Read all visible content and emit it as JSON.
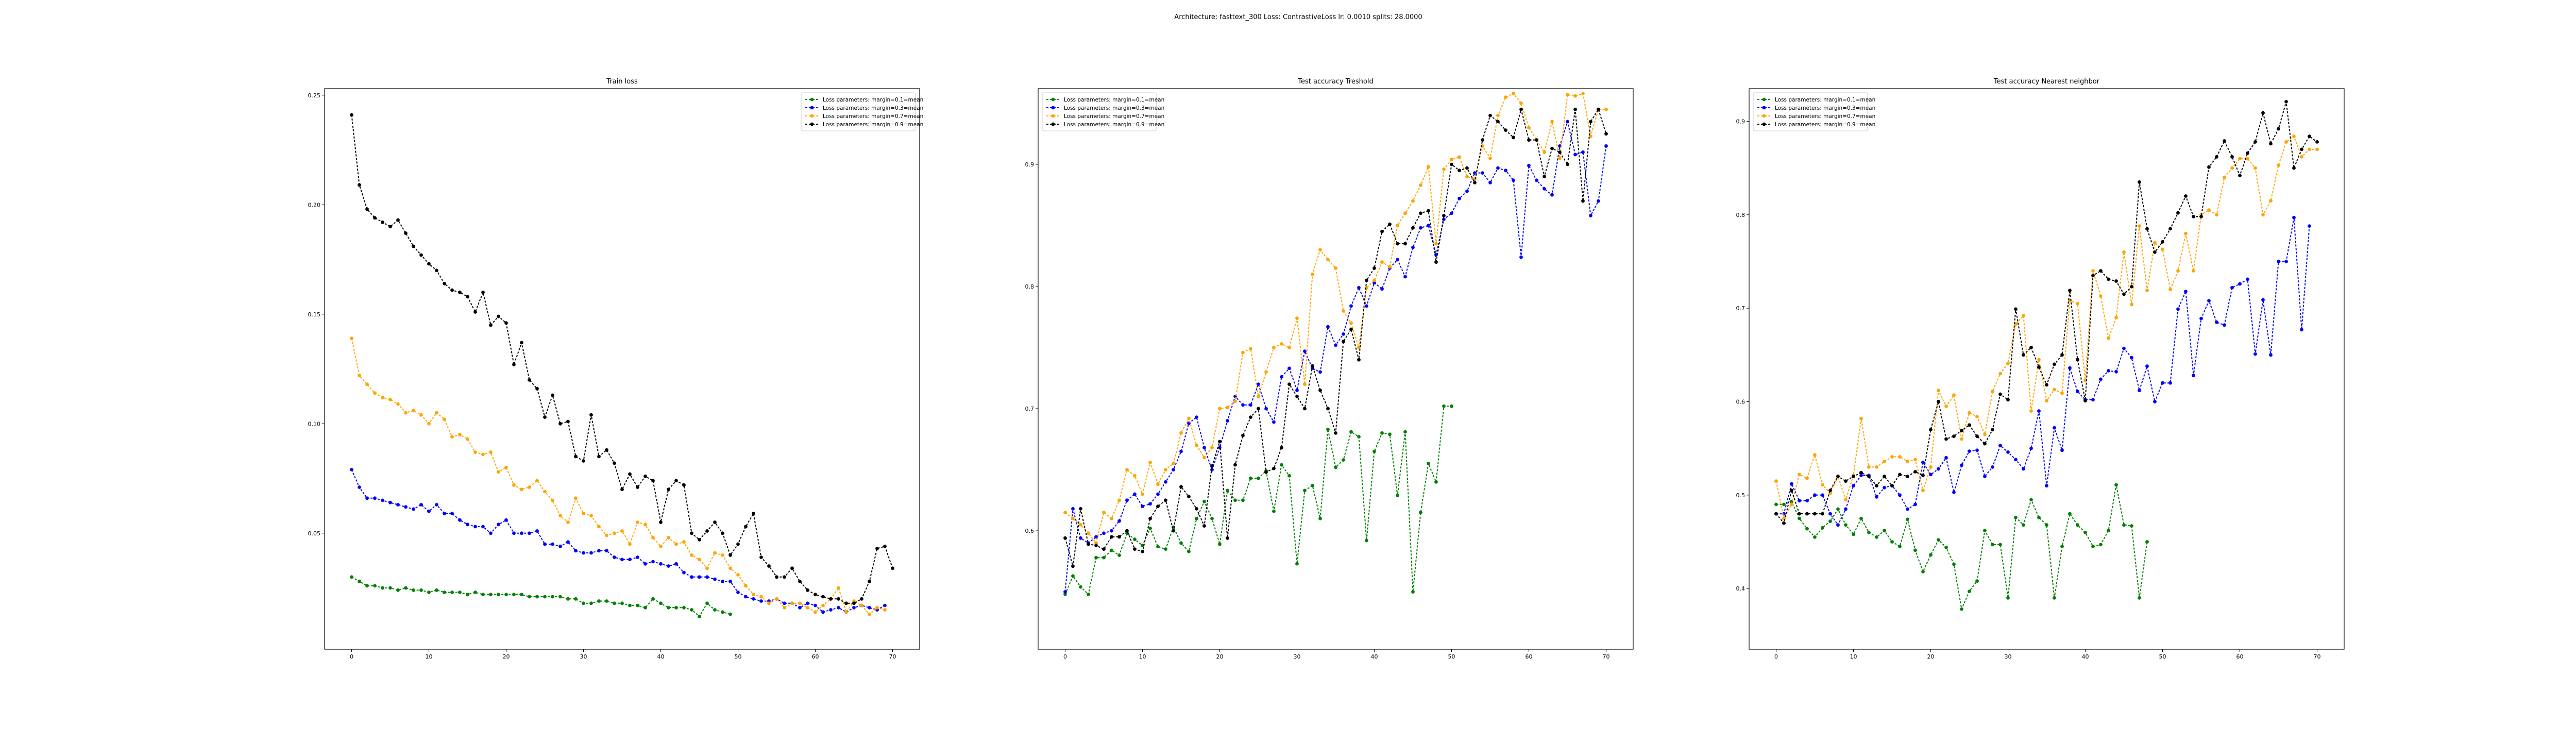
{
  "figure_title": "Architecture: fasttext_300 Loss: ContrastiveLoss lr: 0.0010 splits: 28.0000",
  "legend_labels": [
    "Loss parameters: margin=0.1=mean",
    "Loss parameters: margin=0.3=mean",
    "Loss parameters: margin=0.7=mean",
    "Loss parameters: margin=0.9=mean"
  ],
  "series_colors": [
    "#008000",
    "#0000ff",
    "#ffa500",
    "#000000"
  ],
  "chart_data": [
    {
      "type": "line",
      "title": "Train loss",
      "xlabel": "",
      "ylabel": "",
      "xlim": [
        -3.5,
        73.5
      ],
      "ylim": [
        -0.003,
        0.253
      ],
      "xticks": [
        0,
        10,
        20,
        30,
        40,
        50,
        60,
        70
      ],
      "yticks": [
        0.05,
        0.1,
        0.15,
        0.2,
        0.25
      ],
      "ytick_labels": [
        "0.05",
        "0.10",
        "0.15",
        "0.20",
        "0.25"
      ],
      "legend_position": "upper right",
      "grid": false,
      "series": [
        {
          "name": "Loss parameters: margin=0.1=mean",
          "values": [
            0.03,
            0.028,
            0.026,
            0.026,
            0.025,
            0.025,
            0.024,
            0.025,
            0.024,
            0.024,
            0.023,
            0.024,
            0.023,
            0.023,
            0.023,
            0.022,
            0.023,
            0.022,
            0.022,
            0.022,
            0.022,
            0.022,
            0.022,
            0.021,
            0.021,
            0.021,
            0.021,
            0.021,
            0.02,
            0.02,
            0.018,
            0.018,
            0.019,
            0.019,
            0.018,
            0.018,
            0.017,
            0.017,
            0.016,
            0.02,
            0.018,
            0.016,
            0.016,
            0.016,
            0.015,
            0.012,
            0.018,
            0.015,
            0.014,
            0.013
          ]
        },
        {
          "name": "Loss parameters: margin=0.3=mean",
          "values": [
            0.079,
            0.071,
            0.066,
            0.066,
            0.065,
            0.064,
            0.063,
            0.062,
            0.061,
            0.063,
            0.06,
            0.063,
            0.059,
            0.059,
            0.056,
            0.054,
            0.053,
            0.053,
            0.05,
            0.054,
            0.056,
            0.05,
            0.05,
            0.05,
            0.051,
            0.045,
            0.045,
            0.044,
            0.046,
            0.042,
            0.041,
            0.041,
            0.042,
            0.042,
            0.039,
            0.038,
            0.038,
            0.039,
            0.036,
            0.037,
            0.036,
            0.035,
            0.036,
            0.032,
            0.03,
            0.03,
            0.03,
            0.029,
            0.028,
            0.028,
            0.023,
            0.021,
            0.02,
            0.019,
            0.019,
            0.02,
            0.018,
            0.018,
            0.016,
            0.018,
            0.017,
            0.014,
            0.015,
            0.016,
            0.014,
            0.016,
            0.017,
            0.016,
            0.015,
            0.017
          ]
        },
        {
          "name": "Loss parameters: margin=0.7=mean",
          "values": [
            0.139,
            0.122,
            0.118,
            0.114,
            0.112,
            0.111,
            0.109,
            0.105,
            0.106,
            0.104,
            0.1,
            0.105,
            0.102,
            0.094,
            0.095,
            0.093,
            0.087,
            0.086,
            0.087,
            0.078,
            0.08,
            0.072,
            0.07,
            0.071,
            0.074,
            0.069,
            0.065,
            0.058,
            0.055,
            0.066,
            0.059,
            0.058,
            0.053,
            0.049,
            0.05,
            0.051,
            0.045,
            0.055,
            0.054,
            0.048,
            0.044,
            0.048,
            0.045,
            0.046,
            0.04,
            0.038,
            0.034,
            0.041,
            0.04,
            0.034,
            0.031,
            0.026,
            0.022,
            0.021,
            0.018,
            0.02,
            0.016,
            0.018,
            0.018,
            0.016,
            0.014,
            0.017,
            0.02,
            0.025,
            0.014,
            0.019,
            0.017,
            0.013,
            0.016,
            0.015
          ]
        },
        {
          "name": "Loss parameters: margin=0.9=mean",
          "values": [
            0.241,
            0.209,
            0.198,
            0.194,
            0.192,
            0.19,
            0.193,
            0.187,
            0.181,
            0.177,
            0.173,
            0.17,
            0.164,
            0.161,
            0.16,
            0.158,
            0.151,
            0.16,
            0.145,
            0.149,
            0.146,
            0.127,
            0.137,
            0.12,
            0.116,
            0.103,
            0.113,
            0.1,
            0.101,
            0.085,
            0.083,
            0.104,
            0.085,
            0.088,
            0.082,
            0.07,
            0.077,
            0.071,
            0.076,
            0.074,
            0.055,
            0.07,
            0.074,
            0.072,
            0.05,
            0.047,
            0.051,
            0.055,
            0.05,
            0.04,
            0.045,
            0.053,
            0.059,
            0.039,
            0.035,
            0.03,
            0.03,
            0.034,
            0.028,
            0.024,
            0.022,
            0.021,
            0.02,
            0.02,
            0.018,
            0.018,
            0.02,
            0.028,
            0.043,
            0.044,
            0.034
          ]
        }
      ]
    },
    {
      "type": "line",
      "title": "Test accuracy Treshold",
      "xlabel": "",
      "ylabel": "",
      "xlim": [
        -3.5,
        73.5
      ],
      "ylim": [
        0.503,
        0.962
      ],
      "xticks": [
        0,
        10,
        20,
        30,
        40,
        50,
        60,
        70
      ],
      "yticks": [
        0.6,
        0.7,
        0.8,
        0.9
      ],
      "ytick_labels": [
        "0.6",
        "0.7",
        "0.8",
        "0.9"
      ],
      "legend_position": "upper left",
      "grid": false,
      "series": [
        {
          "name": "Loss parameters: margin=0.1=mean",
          "values": [
            0.548,
            0.563,
            0.554,
            0.548,
            0.578,
            0.578,
            0.584,
            0.58,
            0.598,
            0.593,
            0.588,
            0.602,
            0.587,
            0.585,
            0.603,
            0.59,
            0.583,
            0.61,
            0.624,
            0.61,
            0.589,
            0.633,
            0.625,
            0.625,
            0.643,
            0.643,
            0.649,
            0.616,
            0.654,
            0.645,
            0.573,
            0.633,
            0.637,
            0.61,
            0.683,
            0.652,
            0.658,
            0.681,
            0.677,
            0.592,
            0.665,
            0.68,
            0.679,
            0.629,
            0.681,
            0.55,
            0.615,
            0.655,
            0.64,
            0.702,
            0.702
          ]
        },
        {
          "name": "Loss parameters: margin=0.3=mean",
          "values": [
            0.55,
            0.618,
            0.594,
            0.59,
            0.595,
            0.598,
            0.6,
            0.608,
            0.625,
            0.63,
            0.62,
            0.622,
            0.63,
            0.64,
            0.65,
            0.665,
            0.688,
            0.693,
            0.668,
            0.65,
            0.668,
            0.69,
            0.71,
            0.703,
            0.703,
            0.72,
            0.7,
            0.689,
            0.726,
            0.733,
            0.715,
            0.747,
            0.733,
            0.73,
            0.767,
            0.752,
            0.761,
            0.784,
            0.799,
            0.784,
            0.803,
            0.798,
            0.815,
            0.822,
            0.808,
            0.832,
            0.848,
            0.85,
            0.826,
            0.855,
            0.86,
            0.872,
            0.878,
            0.893,
            0.893,
            0.885,
            0.897,
            0.895,
            0.887,
            0.824,
            0.899,
            0.887,
            0.88,
            0.875,
            0.915,
            0.935,
            0.908,
            0.91,
            0.858,
            0.87,
            0.915
          ]
        },
        {
          "name": "Loss parameters: margin=0.7=mean",
          "values": [
            0.615,
            0.61,
            0.605,
            0.598,
            0.59,
            0.615,
            0.61,
            0.625,
            0.65,
            0.645,
            0.63,
            0.656,
            0.638,
            0.65,
            0.655,
            0.68,
            0.692,
            0.67,
            0.66,
            0.668,
            0.7,
            0.701,
            0.706,
            0.746,
            0.749,
            0.71,
            0.73,
            0.75,
            0.753,
            0.75,
            0.774,
            0.72,
            0.81,
            0.83,
            0.822,
            0.815,
            0.78,
            0.77,
            0.75,
            0.799,
            0.805,
            0.82,
            0.816,
            0.85,
            0.86,
            0.87,
            0.883,
            0.898,
            0.835,
            0.896,
            0.904,
            0.906,
            0.89,
            0.888,
            0.915,
            0.905,
            0.94,
            0.955,
            0.958,
            0.95,
            0.93,
            0.92,
            0.91,
            0.935,
            0.905,
            0.957,
            0.956,
            0.958,
            0.923,
            0.945,
            0.945
          ]
        },
        {
          "name": "Loss parameters: margin=0.9=mean",
          "values": [
            0.594,
            0.571,
            0.618,
            0.589,
            0.588,
            0.585,
            0.595,
            0.595,
            0.6,
            0.585,
            0.583,
            0.61,
            0.62,
            0.625,
            0.6,
            0.636,
            0.628,
            0.618,
            0.604,
            0.653,
            0.673,
            0.594,
            0.654,
            0.678,
            0.693,
            0.7,
            0.648,
            0.651,
            0.668,
            0.72,
            0.71,
            0.7,
            0.735,
            0.715,
            0.7,
            0.68,
            0.755,
            0.765,
            0.74,
            0.805,
            0.815,
            0.845,
            0.851,
            0.835,
            0.835,
            0.848,
            0.86,
            0.862,
            0.82,
            0.858,
            0.9,
            0.895,
            0.897,
            0.885,
            0.92,
            0.94,
            0.935,
            0.928,
            0.922,
            0.945,
            0.92,
            0.92,
            0.89,
            0.913,
            0.91,
            0.9,
            0.945,
            0.87,
            0.935,
            0.945,
            0.925
          ]
        }
      ]
    },
    {
      "type": "line",
      "title": "Test accuracy Nearest neighbor",
      "xlabel": "",
      "ylabel": "",
      "xlim": [
        -3.5,
        73.5
      ],
      "ylim": [
        0.335,
        0.935
      ],
      "xticks": [
        0,
        10,
        20,
        30,
        40,
        50,
        60,
        70
      ],
      "yticks": [
        0.4,
        0.5,
        0.6,
        0.7,
        0.8,
        0.9
      ],
      "ytick_labels": [
        "0.4",
        "0.5",
        "0.6",
        "0.7",
        "0.8",
        "0.9"
      ],
      "legend_position": "upper left",
      "grid": false,
      "series": [
        {
          "name": "Loss parameters: margin=0.1=mean",
          "values": [
            0.49,
            0.49,
            0.493,
            0.475,
            0.464,
            0.455,
            0.465,
            0.472,
            0.485,
            0.468,
            0.458,
            0.475,
            0.46,
            0.455,
            0.462,
            0.45,
            0.445,
            0.474,
            0.441,
            0.418,
            0.436,
            0.452,
            0.444,
            0.426,
            0.378,
            0.397,
            0.408,
            0.462,
            0.447,
            0.447,
            0.39,
            0.476,
            0.468,
            0.495,
            0.476,
            0.468,
            0.39,
            0.445,
            0.48,
            0.468,
            0.46,
            0.445,
            0.447,
            0.462,
            0.511,
            0.468,
            0.467,
            0.39,
            0.45
          ]
        },
        {
          "name": "Loss parameters: margin=0.3=mean",
          "values": [
            0.48,
            0.48,
            0.512,
            0.494,
            0.494,
            0.5,
            0.5,
            0.48,
            0.468,
            0.485,
            0.51,
            0.521,
            0.521,
            0.498,
            0.508,
            0.51,
            0.5,
            0.485,
            0.49,
            0.535,
            0.522,
            0.528,
            0.54,
            0.503,
            0.532,
            0.547,
            0.548,
            0.52,
            0.53,
            0.553,
            0.546,
            0.538,
            0.528,
            0.55,
            0.59,
            0.51,
            0.572,
            0.548,
            0.636,
            0.611,
            0.602,
            0.602,
            0.624,
            0.633,
            0.632,
            0.657,
            0.647,
            0.612,
            0.638,
            0.6,
            0.62,
            0.62,
            0.699,
            0.718,
            0.628,
            0.689,
            0.708,
            0.685,
            0.682,
            0.722,
            0.726,
            0.731,
            0.651,
            0.709,
            0.65,
            0.75,
            0.75,
            0.797,
            0.677,
            0.788
          ]
        },
        {
          "name": "Loss parameters: margin=0.7=mean",
          "values": [
            0.515,
            0.475,
            0.49,
            0.522,
            0.518,
            0.543,
            0.511,
            0.502,
            0.52,
            0.495,
            0.521,
            0.582,
            0.53,
            0.53,
            0.536,
            0.541,
            0.541,
            0.536,
            0.538,
            0.505,
            0.53,
            0.612,
            0.595,
            0.607,
            0.56,
            0.588,
            0.584,
            0.565,
            0.611,
            0.63,
            0.641,
            0.683,
            0.692,
            0.59,
            0.645,
            0.601,
            0.613,
            0.609,
            0.708,
            0.705,
            0.623,
            0.74,
            0.713,
            0.668,
            0.69,
            0.76,
            0.704,
            0.788,
            0.719,
            0.77,
            0.763,
            0.72,
            0.74,
            0.78,
            0.74,
            0.8,
            0.805,
            0.8,
            0.84,
            0.85,
            0.86,
            0.86,
            0.85,
            0.8,
            0.815,
            0.853,
            0.878,
            0.884,
            0.862,
            0.87,
            0.87
          ]
        },
        {
          "name": "Loss parameters: margin=0.9=mean",
          "values": [
            0.48,
            0.47,
            0.505,
            0.48,
            0.48,
            0.48,
            0.48,
            0.505,
            0.52,
            0.515,
            0.52,
            0.524,
            0.52,
            0.51,
            0.52,
            0.51,
            0.522,
            0.52,
            0.525,
            0.521,
            0.57,
            0.6,
            0.56,
            0.563,
            0.569,
            0.575,
            0.563,
            0.555,
            0.57,
            0.608,
            0.602,
            0.699,
            0.65,
            0.658,
            0.637,
            0.618,
            0.64,
            0.65,
            0.719,
            0.645,
            0.601,
            0.735,
            0.74,
            0.731,
            0.729,
            0.715,
            0.723,
            0.835,
            0.785,
            0.76,
            0.771,
            0.785,
            0.802,
            0.82,
            0.798,
            0.798,
            0.851,
            0.862,
            0.879,
            0.862,
            0.842,
            0.866,
            0.878,
            0.909,
            0.876,
            0.892,
            0.921,
            0.85,
            0.87,
            0.884,
            0.878
          ]
        }
      ]
    }
  ]
}
